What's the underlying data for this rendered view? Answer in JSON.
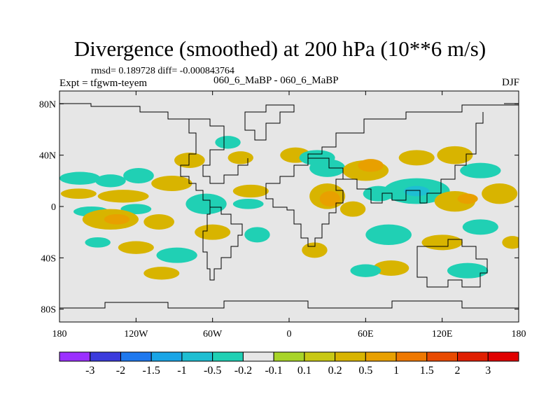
{
  "chart_data": {
    "type": "heatmap",
    "title": "Divergence (smoothed) at 200 hPa (10**6 m/s)",
    "stats_label": "rmsd= 0.189728 diff= -0.000843764",
    "experiment_label": "Expt = tfgwm-teyem",
    "case_label": "060_6_MaBP - 060_6_MaBP",
    "season": "DJF",
    "projection": "cylindrical-equidistant",
    "lon_range": [
      -180,
      180
    ],
    "lat_range": [
      -90,
      90
    ],
    "x_ticks": [
      {
        "value": -180,
        "label": "180"
      },
      {
        "value": -120,
        "label": "120W"
      },
      {
        "value": -60,
        "label": "60W"
      },
      {
        "value": 0,
        "label": "0"
      },
      {
        "value": 60,
        "label": "60E"
      },
      {
        "value": 120,
        "label": "120E"
      },
      {
        "value": 180,
        "label": "180"
      }
    ],
    "y_ticks": [
      {
        "value": 80,
        "label": "80N"
      },
      {
        "value": 40,
        "label": "40N"
      },
      {
        "value": 0,
        "label": "0"
      },
      {
        "value": -40,
        "label": "40S"
      },
      {
        "value": -80,
        "label": "80S"
      }
    ],
    "colorbar": {
      "levels": [
        "-3",
        "-2",
        "-1.5",
        "-1",
        "-0.5",
        "-0.2",
        "-0.1",
        "0.1",
        "0.2",
        "0.5",
        "1",
        "1.5",
        "2",
        "3"
      ],
      "colors": [
        "#9b30ff",
        "#3b3bdc",
        "#1e78ee",
        "#19a5e6",
        "#1ebed2",
        "#20d0b4",
        "#e6e6e6",
        "#a8d428",
        "#c8c814",
        "#d8b400",
        "#e8a000",
        "#ee7800",
        "#e84a00",
        "#e01e00",
        "#e00000"
      ]
    },
    "features": [
      {
        "lon": -164,
        "lat": 22,
        "rx": 16,
        "ry": 5,
        "level": "-0.2"
      },
      {
        "lon": -140,
        "lat": 20,
        "rx": 12,
        "ry": 5,
        "level": "-0.2"
      },
      {
        "lon": -118,
        "lat": 24,
        "rx": 12,
        "ry": 6,
        "level": "-0.2"
      },
      {
        "lon": -165,
        "lat": 10,
        "rx": 14,
        "ry": 4,
        "level": "0.2"
      },
      {
        "lon": -130,
        "lat": 8,
        "rx": 20,
        "ry": 5,
        "level": "0.2"
      },
      {
        "lon": -92,
        "lat": 18,
        "rx": 16,
        "ry": 6,
        "level": "0.2"
      },
      {
        "lon": -155,
        "lat": -4,
        "rx": 14,
        "ry": 4,
        "level": "-0.2"
      },
      {
        "lon": -120,
        "lat": -2,
        "rx": 12,
        "ry": 4,
        "level": "-0.2"
      },
      {
        "lon": -140,
        "lat": -10,
        "rx": 22,
        "ry": 8,
        "level": "0.2"
      },
      {
        "lon": -135,
        "lat": -10,
        "rx": 10,
        "ry": 4,
        "level": "0.5"
      },
      {
        "lon": -102,
        "lat": -12,
        "rx": 12,
        "ry": 6,
        "level": "0.2"
      },
      {
        "lon": -65,
        "lat": 2,
        "rx": 16,
        "ry": 8,
        "level": "-0.2"
      },
      {
        "lon": -60,
        "lat": -20,
        "rx": 14,
        "ry": 6,
        "level": "0.2"
      },
      {
        "lon": -78,
        "lat": 36,
        "rx": 12,
        "ry": 6,
        "level": "0.2"
      },
      {
        "lon": -48,
        "lat": 50,
        "rx": 10,
        "ry": 5,
        "level": "-0.2"
      },
      {
        "lon": -38,
        "lat": 38,
        "rx": 10,
        "ry": 5,
        "level": "0.2"
      },
      {
        "lon": -30,
        "lat": 12,
        "rx": 14,
        "ry": 5,
        "level": "0.2"
      },
      {
        "lon": -32,
        "lat": 2,
        "rx": 12,
        "ry": 4,
        "level": "-0.2"
      },
      {
        "lon": -25,
        "lat": -22,
        "rx": 10,
        "ry": 6,
        "level": "-0.2"
      },
      {
        "lon": -120,
        "lat": -32,
        "rx": 14,
        "ry": 5,
        "level": "0.2"
      },
      {
        "lon": -150,
        "lat": -28,
        "rx": 10,
        "ry": 4,
        "level": "-0.2"
      },
      {
        "lon": -88,
        "lat": -38,
        "rx": 16,
        "ry": 6,
        "level": "-0.2"
      },
      {
        "lon": -100,
        "lat": -52,
        "rx": 14,
        "ry": 5,
        "level": "0.2"
      },
      {
        "lon": 5,
        "lat": 40,
        "rx": 12,
        "ry": 6,
        "level": "0.2"
      },
      {
        "lon": 30,
        "lat": 30,
        "rx": 14,
        "ry": 7,
        "level": "-0.2"
      },
      {
        "lon": 22,
        "lat": 38,
        "rx": 14,
        "ry": 6,
        "level": "-0.2"
      },
      {
        "lon": 30,
        "lat": 8,
        "rx": 14,
        "ry": 10,
        "level": "0.2"
      },
      {
        "lon": 32,
        "lat": 6,
        "rx": 8,
        "ry": 6,
        "level": "0.5"
      },
      {
        "lon": 50,
        "lat": -2,
        "rx": 10,
        "ry": 6,
        "level": "0.2"
      },
      {
        "lon": 60,
        "lat": 28,
        "rx": 18,
        "ry": 8,
        "level": "0.2"
      },
      {
        "lon": 64,
        "lat": 32,
        "rx": 10,
        "ry": 5,
        "level": "0.5"
      },
      {
        "lon": 70,
        "lat": 10,
        "rx": 12,
        "ry": 6,
        "level": "-0.2"
      },
      {
        "lon": 78,
        "lat": -22,
        "rx": 18,
        "ry": 8,
        "level": "-0.2"
      },
      {
        "lon": 100,
        "lat": 12,
        "rx": 26,
        "ry": 10,
        "level": "-0.2"
      },
      {
        "lon": 100,
        "lat": 12,
        "rx": 10,
        "ry": 4,
        "level": "-0.5"
      },
      {
        "lon": 100,
        "lat": 38,
        "rx": 14,
        "ry": 6,
        "level": "0.2"
      },
      {
        "lon": 130,
        "lat": 40,
        "rx": 14,
        "ry": 7,
        "level": "0.2"
      },
      {
        "lon": 130,
        "lat": 4,
        "rx": 16,
        "ry": 8,
        "level": "0.2"
      },
      {
        "lon": 140,
        "lat": 6,
        "rx": 8,
        "ry": 4,
        "level": "0.5"
      },
      {
        "lon": 150,
        "lat": 28,
        "rx": 16,
        "ry": 6,
        "level": "-0.2"
      },
      {
        "lon": 165,
        "lat": 10,
        "rx": 14,
        "ry": 8,
        "level": "0.2"
      },
      {
        "lon": 150,
        "lat": -16,
        "rx": 14,
        "ry": 6,
        "level": "-0.2"
      },
      {
        "lon": 120,
        "lat": -28,
        "rx": 16,
        "ry": 6,
        "level": "0.2"
      },
      {
        "lon": 140,
        "lat": -50,
        "rx": 16,
        "ry": 6,
        "level": "-0.2"
      },
      {
        "lon": 80,
        "lat": -48,
        "rx": 14,
        "ry": 6,
        "level": "0.2"
      },
      {
        "lon": 175,
        "lat": -28,
        "rx": 8,
        "ry": 5,
        "level": "0.2"
      },
      {
        "lon": 20,
        "lat": -34,
        "rx": 10,
        "ry": 6,
        "level": "0.2"
      },
      {
        "lon": 60,
        "lat": -50,
        "rx": 12,
        "ry": 5,
        "level": "-0.2"
      }
    ]
  }
}
